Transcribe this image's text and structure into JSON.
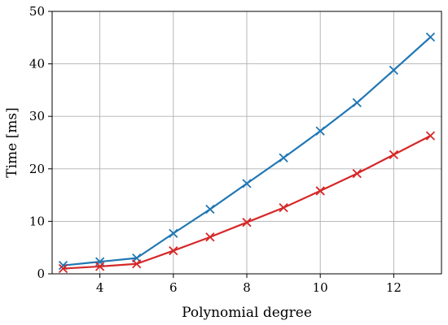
{
  "chart_data": {
    "type": "line",
    "xlabel": "Polynomial degree",
    "ylabel": "Time [ms]",
    "xlim": [
      2.7,
      13.3
    ],
    "ylim": [
      0,
      50
    ],
    "xticks": [
      4,
      6,
      8,
      10,
      12
    ],
    "yticks": [
      0,
      10,
      20,
      30,
      40,
      50
    ],
    "grid": true,
    "marker": "x",
    "x": [
      3,
      4,
      5,
      6,
      7,
      8,
      9,
      10,
      11,
      12,
      13
    ],
    "series": [
      {
        "color": "#1f77b4",
        "values": [
          1.6,
          2.3,
          3.0,
          7.7,
          12.3,
          17.2,
          22.1,
          27.2,
          32.6,
          38.8,
          45.1
        ]
      },
      {
        "color": "#d62728",
        "values": [
          1.0,
          1.4,
          1.9,
          4.4,
          7.0,
          9.8,
          12.6,
          15.8,
          19.1,
          22.7,
          26.3
        ]
      }
    ]
  }
}
